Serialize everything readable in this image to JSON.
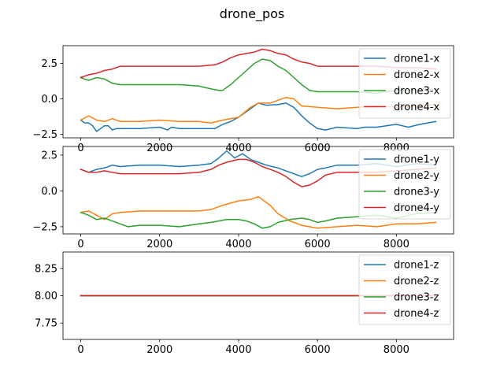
{
  "figure": {
    "title": "drone_pos"
  },
  "chart_data": [
    {
      "type": "line",
      "title": "",
      "xlabel": "",
      "ylabel": "",
      "xlim": [
        -450,
        9450
      ],
      "ylim": [
        -2.75,
        3.75
      ],
      "xticks": [
        0,
        2000,
        4000,
        6000,
        8000
      ],
      "yticks": [
        -2.5,
        0.0,
        2.5
      ],
      "ytick_labels": [
        "−2.5",
        "0.0",
        "2.5"
      ],
      "grid": false,
      "legend": "upper right",
      "series": [
        {
          "name": "drone1-x",
          "color": "#1f77b4",
          "x": [
            0,
            100,
            200,
            300,
            400,
            500,
            600,
            700,
            800,
            900,
            1000,
            1500,
            2000,
            2200,
            2300,
            2500,
            3000,
            3400,
            3600,
            3800,
            4000,
            4200,
            4400,
            4500,
            4700,
            5000,
            5200,
            5400,
            5600,
            5800,
            5900,
            6000,
            6200,
            6500,
            7000,
            7200,
            7500,
            8000,
            8300,
            8600,
            9000
          ],
          "y": [
            -1.5,
            -1.7,
            -1.7,
            -1.9,
            -2.3,
            -2.1,
            -1.9,
            -1.9,
            -2.2,
            -2.1,
            -2.1,
            -2.1,
            -2.0,
            -2.2,
            -2.0,
            -2.1,
            -2.1,
            -2.1,
            -1.8,
            -1.6,
            -1.3,
            -0.9,
            -0.5,
            -0.3,
            -0.45,
            -0.4,
            -0.3,
            -0.6,
            -1.2,
            -1.7,
            -1.9,
            -2.1,
            -2.2,
            -2.0,
            -2.1,
            -2.0,
            -2.0,
            -1.8,
            -2.0,
            -1.8,
            -1.6
          ]
        },
        {
          "name": "drone2-x",
          "color": "#ff7f0e",
          "x": [
            0,
            200,
            400,
            600,
            800,
            1000,
            1500,
            2000,
            2500,
            3000,
            3300,
            3600,
            4000,
            4300,
            4500,
            4800,
            5000,
            5200,
            5400,
            5600,
            6000,
            6500,
            7000,
            7500,
            8000,
            8500,
            9000
          ],
          "y": [
            -1.5,
            -1.2,
            -1.5,
            -1.6,
            -1.4,
            -1.6,
            -1.6,
            -1.5,
            -1.6,
            -1.6,
            -1.7,
            -1.5,
            -1.3,
            -0.6,
            -0.3,
            -0.3,
            -0.1,
            0.1,
            0.0,
            -0.5,
            -0.6,
            -0.7,
            -0.6,
            -0.5,
            -0.6,
            -0.5,
            -0.4
          ]
        },
        {
          "name": "drone3-x",
          "color": "#2ca02c",
          "x": [
            0,
            200,
            400,
            600,
            800,
            1000,
            1500,
            2000,
            2500,
            3000,
            3300,
            3500,
            3600,
            3800,
            4000,
            4200,
            4400,
            4600,
            4800,
            5000,
            5200,
            5400,
            5600,
            5800,
            6000,
            6500,
            7000,
            7500,
            8000,
            8500,
            9000
          ],
          "y": [
            1.5,
            1.3,
            1.5,
            1.4,
            1.1,
            1.0,
            1.0,
            1.0,
            1.0,
            0.9,
            0.7,
            0.6,
            0.6,
            1.0,
            1.5,
            2.0,
            2.5,
            2.8,
            2.7,
            2.3,
            2.0,
            1.5,
            1.0,
            0.6,
            0.5,
            0.5,
            0.5,
            0.4,
            0.6,
            0.6,
            0.7
          ]
        },
        {
          "name": "drone4-x",
          "color": "#d62728",
          "x": [
            0,
            200,
            400,
            600,
            800,
            1000,
            1500,
            2000,
            2500,
            3000,
            3400,
            3600,
            3800,
            4000,
            4200,
            4400,
            4600,
            4800,
            5000,
            5200,
            5400,
            5600,
            5800,
            6000,
            6500,
            7000,
            7500,
            8000,
            8500,
            9000
          ],
          "y": [
            1.5,
            1.7,
            1.8,
            2.0,
            2.1,
            2.3,
            2.3,
            2.3,
            2.3,
            2.3,
            2.4,
            2.6,
            2.9,
            3.1,
            3.2,
            3.3,
            3.5,
            3.4,
            3.2,
            3.1,
            2.8,
            2.6,
            2.5,
            2.3,
            2.3,
            2.3,
            2.3,
            2.2,
            2.2,
            2.1
          ]
        }
      ]
    },
    {
      "type": "line",
      "title": "",
      "xlabel": "",
      "ylabel": "",
      "xlim": [
        -450,
        9450
      ],
      "ylim": [
        -3.0,
        3.1
      ],
      "xticks": [
        0,
        2000,
        4000,
        6000,
        8000
      ],
      "yticks": [
        -2.5,
        0.0,
        2.5
      ],
      "ytick_labels": [
        "−2.5",
        "0.0",
        "2.5"
      ],
      "grid": false,
      "legend": "upper right",
      "series": [
        {
          "name": "drone1-y",
          "color": "#1f77b4",
          "x": [
            0,
            200,
            400,
            600,
            800,
            1000,
            1500,
            2000,
            2500,
            3000,
            3300,
            3500,
            3700,
            3900,
            4100,
            4300,
            4500,
            4700,
            5000,
            5300,
            5600,
            5800,
            6000,
            6200,
            6500,
            7000,
            7500,
            8000,
            8500,
            9000
          ],
          "y": [
            1.5,
            1.3,
            1.5,
            1.6,
            1.8,
            1.7,
            1.8,
            1.8,
            1.7,
            1.8,
            1.9,
            2.3,
            2.8,
            2.3,
            2.6,
            2.2,
            2.0,
            1.8,
            1.6,
            1.3,
            1.0,
            1.2,
            1.5,
            1.6,
            1.8,
            1.8,
            1.9,
            1.7,
            1.9,
            1.8
          ]
        },
        {
          "name": "drone2-y",
          "color": "#ff7f0e",
          "x": [
            0,
            200,
            400,
            600,
            800,
            1000,
            1500,
            2000,
            2500,
            3000,
            3300,
            3600,
            4000,
            4300,
            4500,
            4800,
            5000,
            5300,
            5600,
            6000,
            6500,
            7000,
            7500,
            8000,
            8500,
            9000
          ],
          "y": [
            -1.5,
            -1.4,
            -1.7,
            -2.0,
            -1.6,
            -1.5,
            -1.4,
            -1.4,
            -1.4,
            -1.4,
            -1.3,
            -1.0,
            -0.7,
            -0.6,
            -0.4,
            -1.0,
            -1.6,
            -2.1,
            -2.4,
            -2.6,
            -2.5,
            -2.4,
            -2.5,
            -2.3,
            -2.3,
            -2.2
          ]
        },
        {
          "name": "drone3-y",
          "color": "#2ca02c",
          "x": [
            0,
            200,
            400,
            600,
            800,
            1000,
            1200,
            1500,
            2000,
            2500,
            3000,
            3300,
            3500,
            3700,
            4000,
            4200,
            4400,
            4600,
            4800,
            5000,
            5300,
            5600,
            5800,
            6000,
            6200,
            6500,
            7000,
            7500,
            8000,
            8500,
            9000
          ],
          "y": [
            -1.5,
            -1.7,
            -2.0,
            -1.9,
            -2.1,
            -2.3,
            -2.5,
            -2.4,
            -2.4,
            -2.5,
            -2.3,
            -2.2,
            -2.1,
            -2.0,
            -2.0,
            -2.1,
            -2.3,
            -2.6,
            -2.5,
            -2.2,
            -2.0,
            -1.9,
            -2.0,
            -2.2,
            -2.1,
            -1.9,
            -1.8,
            -1.7,
            -1.9,
            -1.6,
            -1.5
          ]
        },
        {
          "name": "drone4-y",
          "color": "#d62728",
          "x": [
            0,
            200,
            400,
            600,
            800,
            1000,
            1500,
            2000,
            2500,
            3000,
            3300,
            3500,
            3700,
            4000,
            4200,
            4400,
            4600,
            4800,
            5000,
            5200,
            5400,
            5600,
            5800,
            6000,
            6200,
            6500,
            7000,
            7500,
            8000,
            8500,
            9000
          ],
          "y": [
            1.5,
            1.3,
            1.3,
            1.4,
            1.3,
            1.2,
            1.2,
            1.2,
            1.2,
            1.3,
            1.5,
            1.8,
            2.0,
            2.2,
            2.2,
            2.0,
            1.7,
            1.5,
            1.3,
            1.0,
            0.6,
            0.3,
            0.4,
            0.7,
            1.1,
            1.3,
            1.3,
            1.3,
            1.4,
            1.5,
            1.6
          ]
        }
      ]
    },
    {
      "type": "line",
      "title": "",
      "xlabel": "",
      "ylabel": "",
      "xlim": [
        -450,
        9450
      ],
      "ylim": [
        7.6,
        8.4
      ],
      "xticks": [
        0,
        2000,
        4000,
        6000,
        8000
      ],
      "yticks": [
        7.75,
        8.0,
        8.25
      ],
      "ytick_labels": [
        "7.75",
        "8.00",
        "8.25"
      ],
      "grid": false,
      "legend": "upper right",
      "series": [
        {
          "name": "drone1-z",
          "color": "#1f77b4",
          "x": [
            0,
            9000
          ],
          "y": [
            8.0,
            8.0
          ]
        },
        {
          "name": "drone2-z",
          "color": "#ff7f0e",
          "x": [
            0,
            9000
          ],
          "y": [
            8.0,
            8.0
          ]
        },
        {
          "name": "drone3-z",
          "color": "#2ca02c",
          "x": [
            0,
            9000
          ],
          "y": [
            8.0,
            8.0
          ]
        },
        {
          "name": "drone4-z",
          "color": "#d62728",
          "x": [
            0,
            9000
          ],
          "y": [
            8.0,
            8.0
          ]
        }
      ]
    }
  ]
}
